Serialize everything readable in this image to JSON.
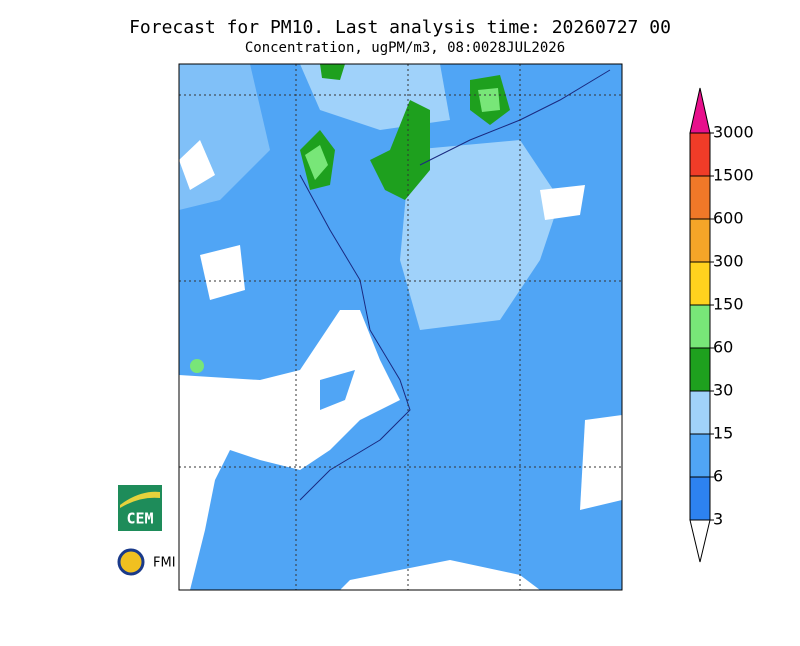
{
  "title": "Forecast for PM10. Last analysis time: 20260727 00",
  "subtitle": "Concentration, ugPM/m3, 08:0028JUL2026",
  "legend": {
    "levels": [
      3,
      6,
      15,
      30,
      60,
      150,
      300,
      600,
      1500,
      3000
    ],
    "colors": [
      "#ffffff",
      "#2d82f0",
      "#50a5f5",
      "#a0d2fa",
      "#1ea01e",
      "#78e678",
      "#ffd21e",
      "#f5a528",
      "#f07828",
      "#f03c28",
      "#e8108c"
    ]
  },
  "logos": {
    "cem": "CEM",
    "fmi": "FMI"
  }
}
